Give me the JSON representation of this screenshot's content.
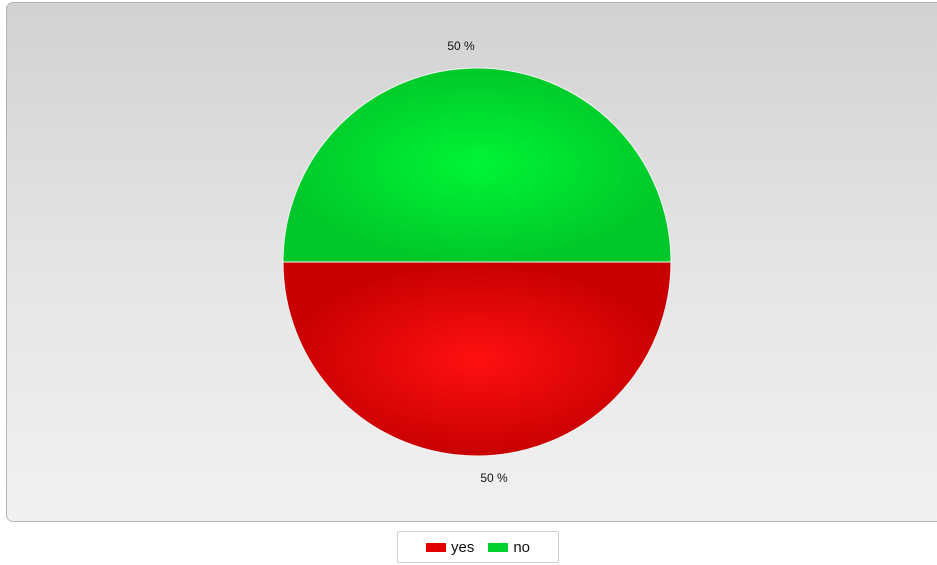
{
  "chart_data": {
    "type": "pie",
    "title": "",
    "slices": [
      {
        "label": "yes",
        "value": 50,
        "display": "50 %",
        "color": "#e00000"
      },
      {
        "label": "no",
        "value": 50,
        "display": "50 %",
        "color": "#00d22d"
      }
    ],
    "legend": {
      "placement": "bottom-center",
      "entries": [
        "yes",
        "no"
      ]
    }
  },
  "colors": {
    "yes": "#e00000",
    "no": "#00d22d",
    "background_top": "#d2d2d2",
    "background_bottom": "#f1f1f1"
  }
}
